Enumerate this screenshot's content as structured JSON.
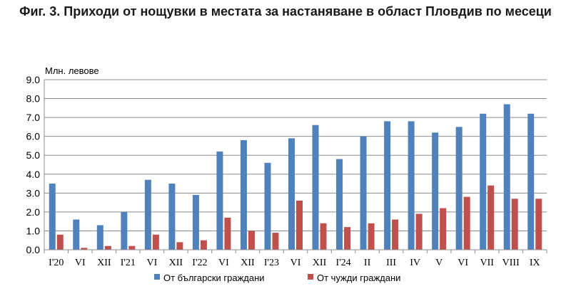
{
  "chart_data": {
    "type": "bar",
    "title": "Фиг. 3. Приходи от нощувки в местата за настаняване в област Пловдив по месеци",
    "ylabel": "Млн. левове",
    "ylim": [
      0,
      9
    ],
    "yticks": [
      "0.0",
      "1.0",
      "2.0",
      "3.0",
      "4.0",
      "5.0",
      "6.0",
      "7.0",
      "8.0",
      "9.0"
    ],
    "grid": true,
    "legend_position": "bottom",
    "categories": [
      "I'20",
      "VI",
      "XII",
      "I'21",
      "VI",
      "XII",
      "I'22",
      "VI",
      "XII",
      "I'23",
      "VI",
      "XII",
      "I'24",
      "II",
      "III",
      "IV",
      "V",
      "VI",
      "VII",
      "VIII",
      "IX"
    ],
    "series": [
      {
        "name": "От български граждани",
        "color": "#4F81BD",
        "values": [
          3.5,
          1.6,
          1.3,
          2.0,
          3.7,
          3.5,
          2.9,
          5.2,
          5.8,
          4.6,
          5.9,
          6.6,
          4.8,
          6.0,
          6.8,
          6.8,
          6.2,
          6.5,
          7.2,
          7.7,
          7.2
        ]
      },
      {
        "name": "От чужди граждани",
        "color": "#C0504D",
        "values": [
          0.8,
          0.1,
          0.2,
          0.2,
          0.8,
          0.4,
          0.5,
          1.7,
          1.0,
          0.9,
          2.6,
          1.4,
          1.2,
          1.4,
          1.6,
          1.9,
          2.2,
          2.8,
          3.4,
          2.7,
          2.7
        ]
      }
    ]
  }
}
